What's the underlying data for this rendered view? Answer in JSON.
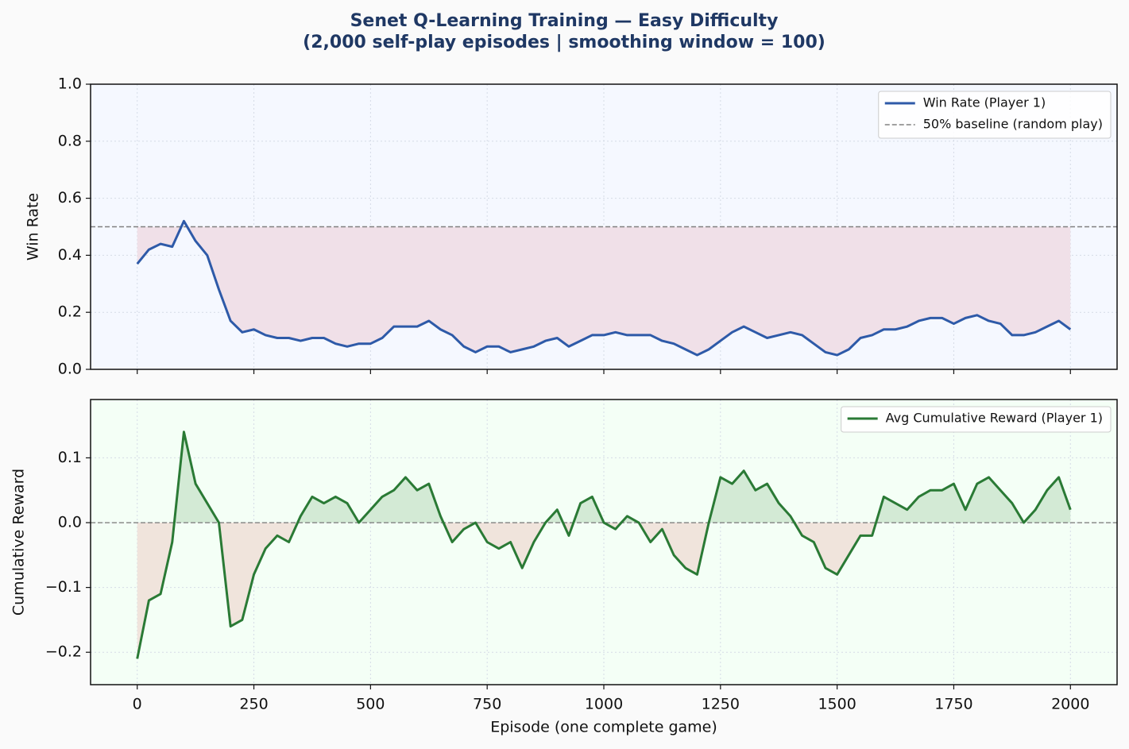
{
  "chart_data": [
    {
      "type": "line",
      "title": "Senet Q-Learning Training — Easy Difficulty",
      "subtitle": "(2,000 self-play episodes | smoothing window = 100)",
      "ylabel": "Win Rate",
      "x": [
        0,
        25,
        50,
        75,
        100,
        125,
        150,
        175,
        200,
        225,
        250,
        275,
        300,
        325,
        350,
        375,
        400,
        425,
        450,
        475,
        500,
        525,
        550,
        575,
        600,
        625,
        650,
        675,
        700,
        725,
        750,
        775,
        800,
        825,
        850,
        875,
        900,
        925,
        950,
        975,
        1000,
        1025,
        1050,
        1075,
        1100,
        1125,
        1150,
        1175,
        1200,
        1225,
        1250,
        1275,
        1300,
        1325,
        1350,
        1375,
        1400,
        1425,
        1450,
        1475,
        1500,
        1525,
        1550,
        1575,
        1600,
        1625,
        1650,
        1675,
        1700,
        1725,
        1750,
        1775,
        1800,
        1825,
        1850,
        1875,
        1900,
        1925,
        1950,
        1975,
        2000
      ],
      "series": [
        {
          "name": "Win Rate (Player 1)",
          "color": "#2e5aa8",
          "values": [
            0.37,
            0.42,
            0.44,
            0.43,
            0.52,
            0.45,
            0.4,
            0.28,
            0.17,
            0.13,
            0.14,
            0.12,
            0.11,
            0.11,
            0.1,
            0.11,
            0.11,
            0.09,
            0.08,
            0.09,
            0.09,
            0.11,
            0.15,
            0.15,
            0.15,
            0.17,
            0.14,
            0.12,
            0.08,
            0.06,
            0.08,
            0.08,
            0.06,
            0.07,
            0.08,
            0.1,
            0.11,
            0.08,
            0.1,
            0.12,
            0.12,
            0.13,
            0.12,
            0.12,
            0.12,
            0.1,
            0.09,
            0.07,
            0.05,
            0.07,
            0.1,
            0.13,
            0.15,
            0.13,
            0.11,
            0.12,
            0.13,
            0.12,
            0.09,
            0.06,
            0.05,
            0.07,
            0.11,
            0.12,
            0.14,
            0.14,
            0.15,
            0.17,
            0.18,
            0.18,
            0.16,
            0.18,
            0.19,
            0.17,
            0.16,
            0.12,
            0.12,
            0.13,
            0.15,
            0.17,
            0.14
          ]
        }
      ],
      "baseline": 0.5,
      "baseline_label": "50% baseline (random play)",
      "fill_below": "#f0e0e8",
      "background": "#f5f8ff",
      "xlim": [
        -100,
        2100
      ],
      "xticks": [
        0,
        250,
        500,
        750,
        1000,
        1250,
        1500,
        1750,
        2000
      ],
      "ylim": [
        0,
        1
      ],
      "yticks": [
        {
          "value": 0,
          "label": "0.0"
        },
        0.2,
        0.4,
        0.6,
        0.8,
        {
          "value": 1,
          "label": "1.0"
        }
      ],
      "grid": true,
      "legend": "upper right"
    },
    {
      "type": "line",
      "ylabel": "Cumulative Reward",
      "xlabel": "Episode (one complete game)",
      "x": [
        0,
        25,
        50,
        75,
        100,
        125,
        150,
        175,
        200,
        225,
        250,
        275,
        300,
        325,
        350,
        375,
        400,
        425,
        450,
        475,
        500,
        525,
        550,
        575,
        600,
        625,
        650,
        675,
        700,
        725,
        750,
        775,
        800,
        825,
        850,
        875,
        900,
        925,
        950,
        975,
        1000,
        1025,
        1050,
        1075,
        1100,
        1125,
        1150,
        1175,
        1200,
        1225,
        1250,
        1275,
        1300,
        1325,
        1350,
        1375,
        1400,
        1425,
        1450,
        1475,
        1500,
        1525,
        1550,
        1575,
        1600,
        1625,
        1650,
        1675,
        1700,
        1725,
        1750,
        1775,
        1800,
        1825,
        1850,
        1875,
        1900,
        1925,
        1950,
        1975,
        2000
      ],
      "series": [
        {
          "name": "Avg Cumulative Reward (Player 1)",
          "color": "#2a7a35",
          "values": [
            -0.21,
            -0.12,
            -0.11,
            -0.03,
            0.14,
            0.06,
            0.03,
            0.0,
            -0.16,
            -0.15,
            -0.08,
            -0.04,
            -0.02,
            -0.03,
            0.01,
            0.04,
            0.03,
            0.04,
            0.03,
            0.0,
            0.02,
            0.04,
            0.05,
            0.07,
            0.05,
            0.06,
            0.01,
            -0.03,
            -0.01,
            0.0,
            -0.03,
            -0.04,
            -0.03,
            -0.07,
            -0.03,
            0.0,
            0.02,
            -0.02,
            0.03,
            0.04,
            0.0,
            -0.01,
            0.01,
            0.0,
            -0.03,
            -0.01,
            -0.05,
            -0.07,
            -0.08,
            0.0,
            0.07,
            0.06,
            0.08,
            0.05,
            0.06,
            0.03,
            0.01,
            -0.02,
            -0.03,
            -0.07,
            -0.08,
            -0.05,
            -0.02,
            -0.02,
            0.04,
            0.03,
            0.02,
            0.04,
            0.05,
            0.05,
            0.06,
            0.02,
            0.06,
            0.07,
            0.05,
            0.03,
            0.0,
            0.02,
            0.05,
            0.07,
            0.02
          ]
        }
      ],
      "baseline": 0,
      "fill_above": "#d3ead5",
      "fill_below": "#f0e4dc",
      "background": "#f4fff6",
      "xlim": [
        -100,
        2100
      ],
      "xticks": [
        0,
        250,
        500,
        750,
        1000,
        1250,
        1500,
        1750,
        2000
      ],
      "ylim": [
        -0.25,
        0.19
      ],
      "yticks": [
        {
          "value": -0.2,
          "label": "−0.2"
        },
        {
          "value": -0.1,
          "label": "−0.1"
        },
        {
          "value": 0,
          "label": "0.0"
        },
        0.1
      ],
      "grid": true,
      "legend": "upper right"
    }
  ]
}
